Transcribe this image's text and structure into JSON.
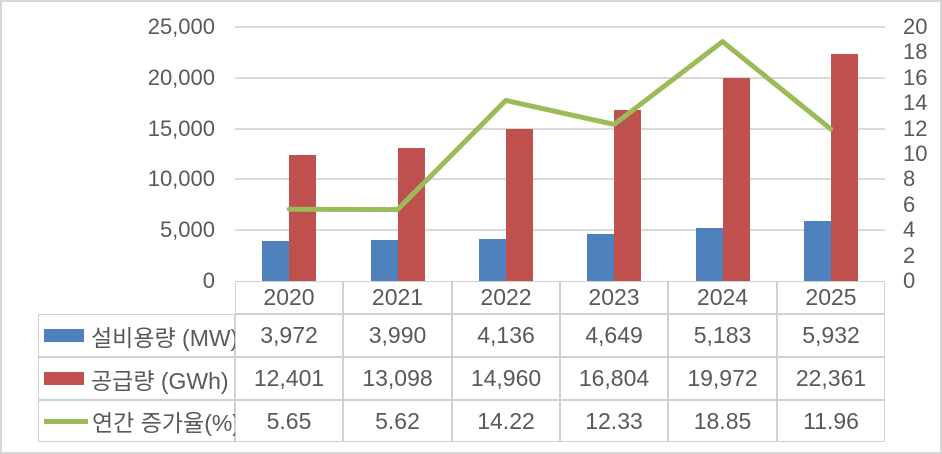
{
  "colors": {
    "text": "#595959",
    "gridline": "#d9d9d9",
    "table_border": "#d0d0d0",
    "frame_border": "#d7d7d7",
    "bar_blue": "#4F81BD",
    "bar_red": "#C0504D",
    "line_green": "#9BBB59"
  },
  "chart_data": {
    "type": "combo-bar-line",
    "categories": [
      "2020",
      "2021",
      "2022",
      "2023",
      "2024",
      "2025"
    ],
    "series": [
      {
        "name": "설비용량 (MW)",
        "chart_type": "bar",
        "axis": "left",
        "color": "#4F81BD",
        "values": [
          3972,
          3990,
          4136,
          4649,
          5183,
          5932
        ],
        "display": [
          "3,972",
          "3,990",
          "4,136",
          "4,649",
          "5,183",
          "5,932"
        ]
      },
      {
        "name": "공급량 (GWh)",
        "chart_type": "bar",
        "axis": "left",
        "color": "#C0504D",
        "values": [
          12401,
          13098,
          14960,
          16804,
          19972,
          22361
        ],
        "display": [
          "12,401",
          "13,098",
          "14,960",
          "16,804",
          "19,972",
          "22,361"
        ]
      },
      {
        "name": "연간 증가율(%)",
        "chart_type": "line",
        "axis": "right",
        "color": "#9BBB59",
        "values": [
          5.65,
          5.62,
          14.22,
          12.33,
          18.85,
          11.96
        ],
        "display": [
          "5.65",
          "5.62",
          "14.22",
          "12.33",
          "18.85",
          "11.96"
        ]
      }
    ],
    "left_axis": {
      "min": 0,
      "max": 25000,
      "step": 5000,
      "ticks": [
        {
          "value": 0,
          "label": "0"
        },
        {
          "value": 5000,
          "label": "5,000"
        },
        {
          "value": 10000,
          "label": "10,000"
        },
        {
          "value": 15000,
          "label": "15,000"
        },
        {
          "value": 20000,
          "label": "20,000"
        },
        {
          "value": 25000,
          "label": "25,000"
        }
      ]
    },
    "right_axis": {
      "min": 0,
      "max": 20,
      "step": 2,
      "ticks": [
        {
          "value": 0,
          "label": "0"
        },
        {
          "value": 2,
          "label": "2"
        },
        {
          "value": 4,
          "label": "4"
        },
        {
          "value": 6,
          "label": "6"
        },
        {
          "value": 8,
          "label": "8"
        },
        {
          "value": 10,
          "label": "10"
        },
        {
          "value": 12,
          "label": "12"
        },
        {
          "value": 14,
          "label": "14"
        },
        {
          "value": 16,
          "label": "16"
        },
        {
          "value": 18,
          "label": "18"
        },
        {
          "value": 20,
          "label": "20"
        }
      ]
    },
    "grid": true,
    "legend_position": "table-rows"
  }
}
